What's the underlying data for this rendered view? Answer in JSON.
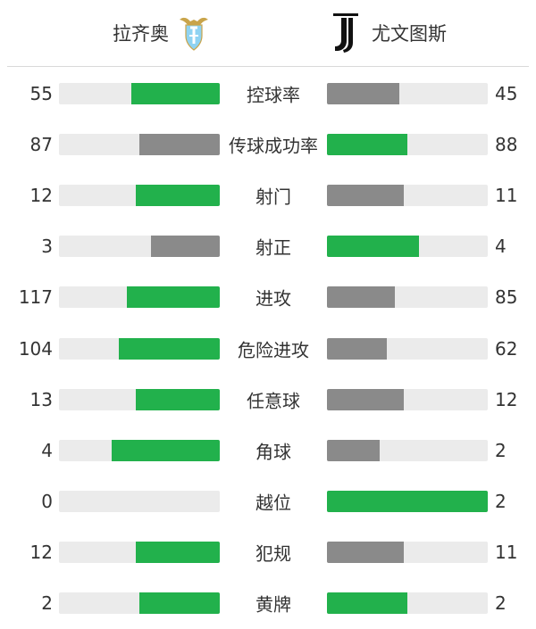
{
  "header": {
    "home": {
      "name": "拉齐奥",
      "logo_icon": "lazio-eagle-crest-icon"
    },
    "away": {
      "name": "尤文图斯",
      "logo_icon": "juventus-j-logo-icon"
    }
  },
  "colors": {
    "leader_bar": "#22b14c",
    "trailer_bar": "#8a8a8a",
    "track": "#ebebeb"
  },
  "stats": [
    {
      "label": "控球率",
      "home": 55,
      "away": 45,
      "home_fill": 0.55,
      "away_fill": 0.45
    },
    {
      "label": "传球成功率",
      "home": 87,
      "away": 88,
      "home_fill": 0.5,
      "away_fill": 0.5
    },
    {
      "label": "射门",
      "home": 12,
      "away": 11,
      "home_fill": 0.52,
      "away_fill": 0.48
    },
    {
      "label": "射正",
      "home": 3,
      "away": 4,
      "home_fill": 0.43,
      "away_fill": 0.57
    },
    {
      "label": "进攻",
      "home": 117,
      "away": 85,
      "home_fill": 0.58,
      "away_fill": 0.42
    },
    {
      "label": "危险进攻",
      "home": 104,
      "away": 62,
      "home_fill": 0.63,
      "away_fill": 0.37
    },
    {
      "label": "任意球",
      "home": 13,
      "away": 12,
      "home_fill": 0.52,
      "away_fill": 0.48
    },
    {
      "label": "角球",
      "home": 4,
      "away": 2,
      "home_fill": 0.67,
      "away_fill": 0.33
    },
    {
      "label": "越位",
      "home": 0,
      "away": 2,
      "home_fill": 0.0,
      "away_fill": 1.0
    },
    {
      "label": "犯规",
      "home": 12,
      "away": 11,
      "home_fill": 0.52,
      "away_fill": 0.48
    },
    {
      "label": "黄牌",
      "home": 2,
      "away": 2,
      "home_fill": 0.5,
      "away_fill": 0.5
    }
  ]
}
